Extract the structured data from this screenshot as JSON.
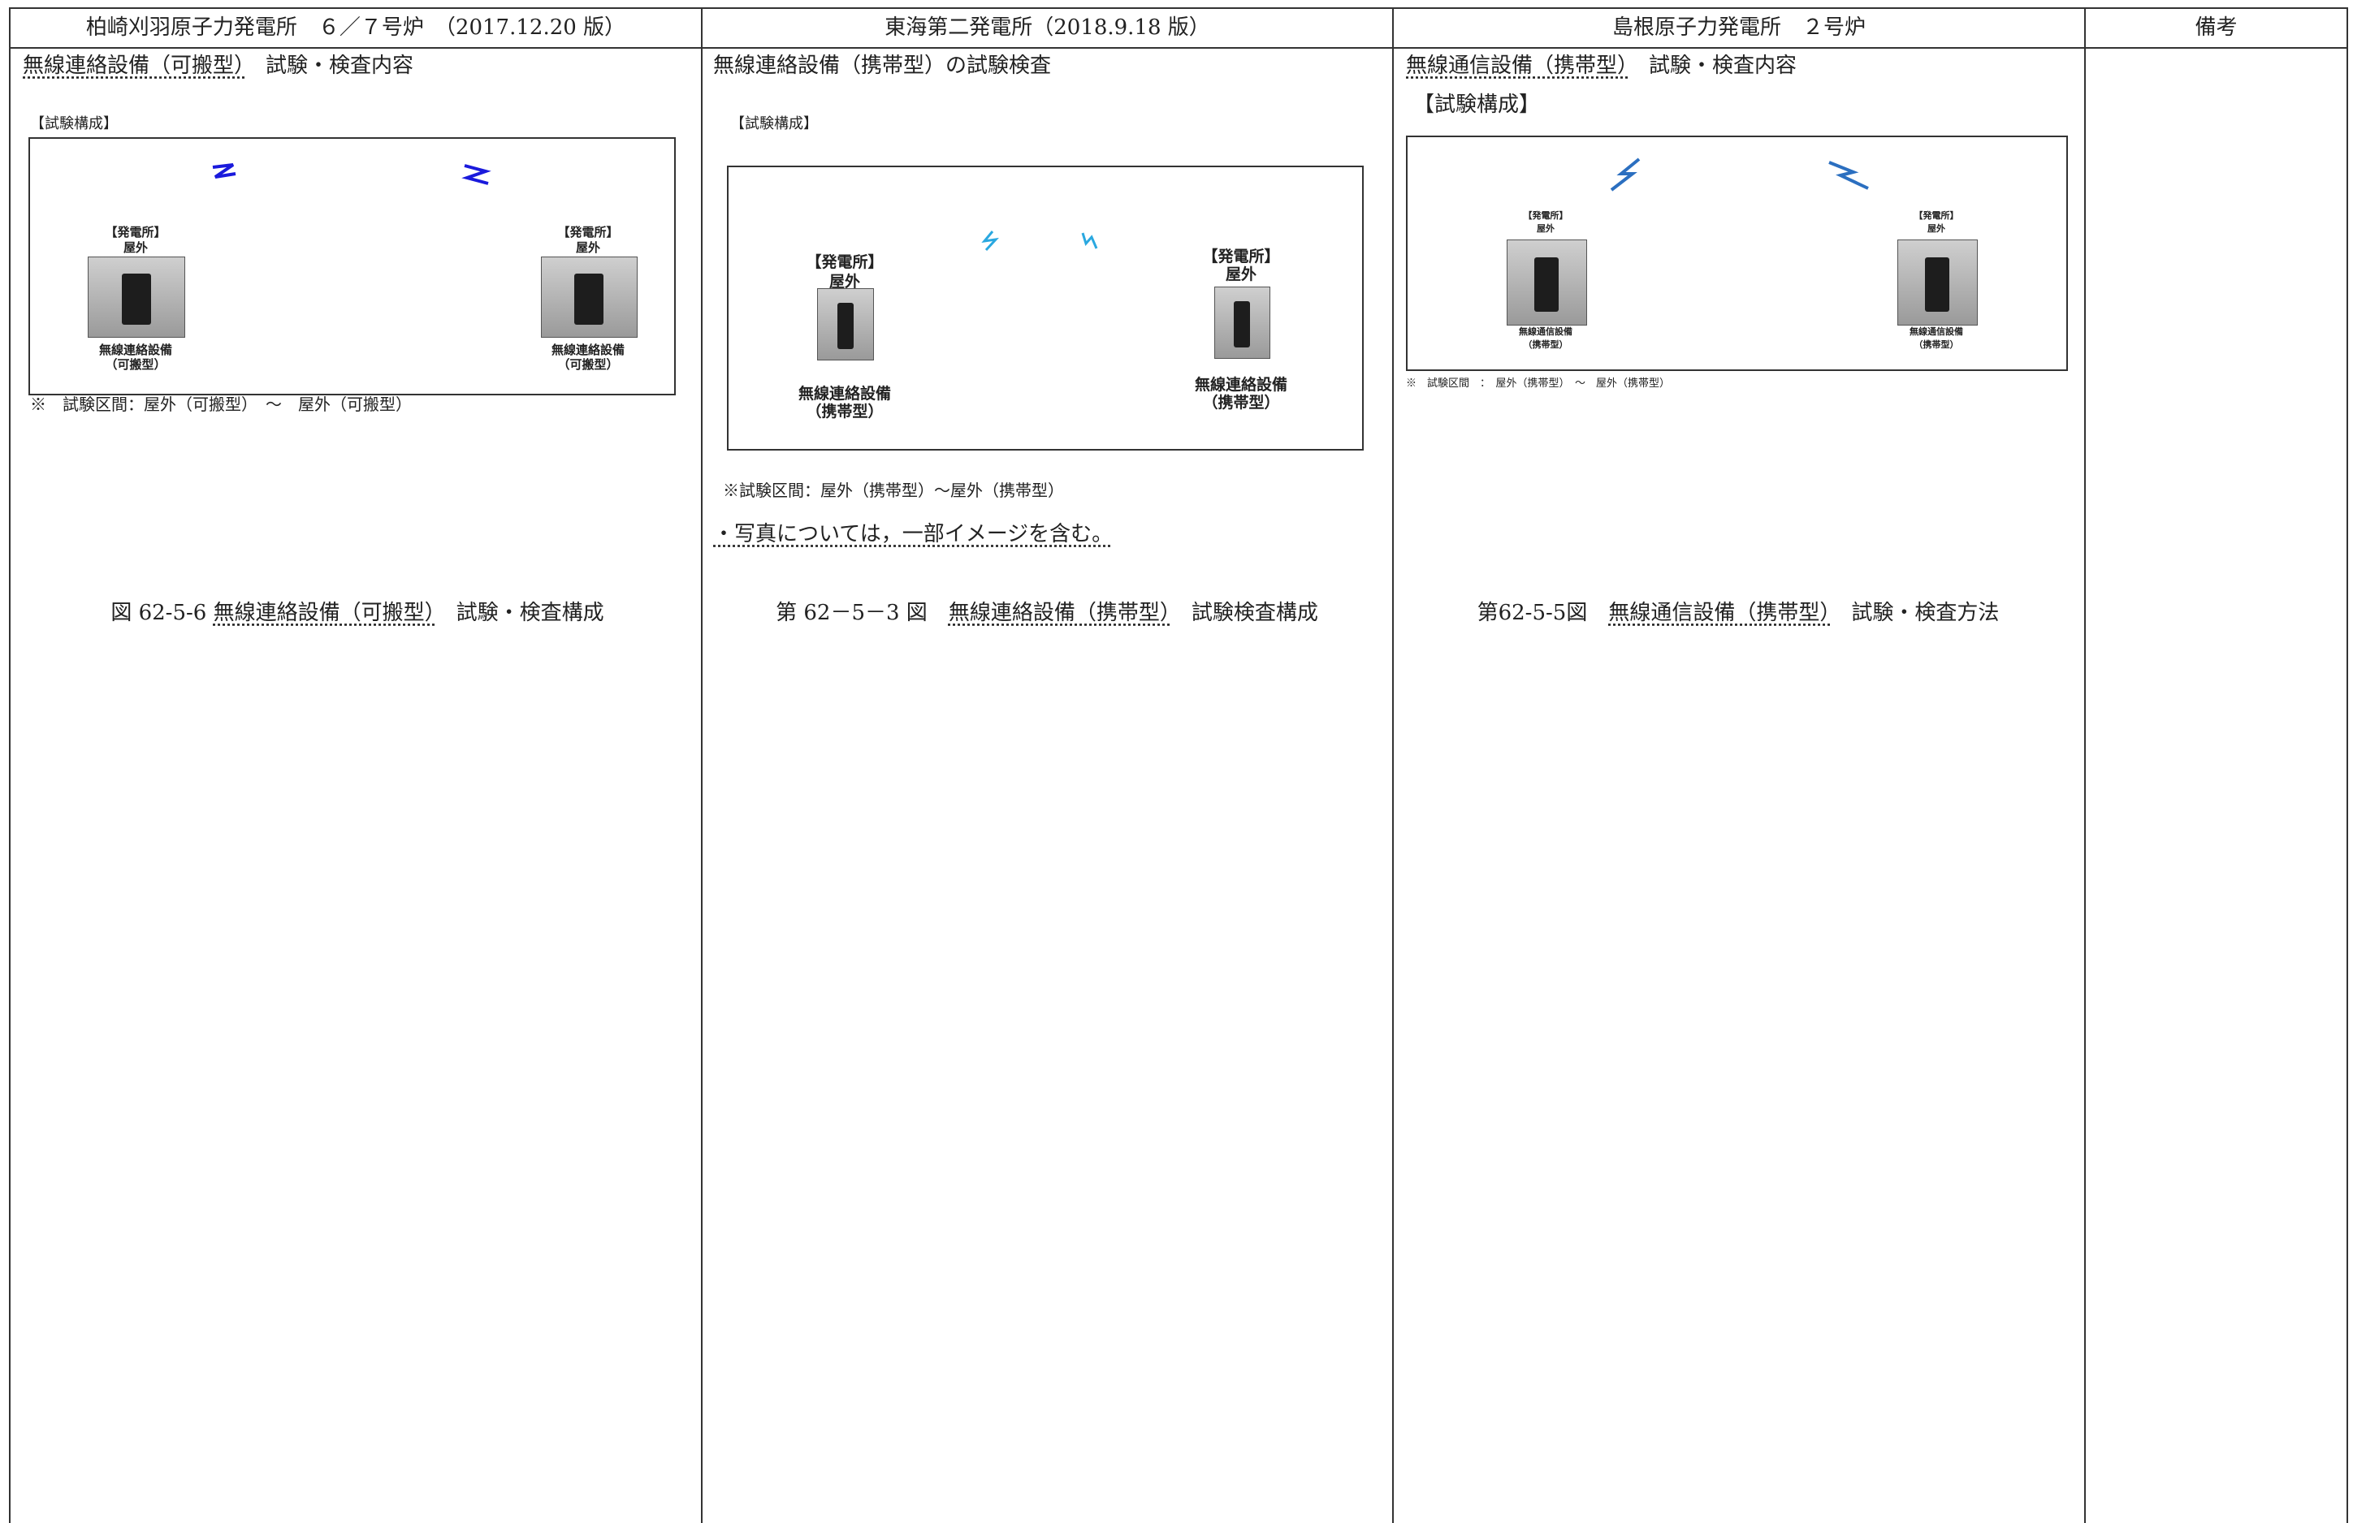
{
  "header": {
    "columns": [
      "柏崎刈羽原子力発電所　６／７号炉　（2017.12.20 版）",
      "東海第二発電所（2018.9.18 版）",
      "島根原子力発電所　２号炉",
      "備考"
    ]
  },
  "kashiwazaki": {
    "heading_underlined": "無線連絡設備（可搬型）",
    "heading_rest": "試験・検査内容",
    "config_label": "【試験構成】",
    "left_station": {
      "place": "【発電所】",
      "location": "屋外",
      "device": "無線連絡設備",
      "kind": "（可搬型）"
    },
    "right_station": {
      "place": "【発電所】",
      "location": "屋外",
      "device": "無線連絡設備",
      "kind": "（可搬型）"
    },
    "note": "※　試験区間：屋外（可搬型）　～　屋外（可搬型）",
    "caption": {
      "number": "図 62-5-6",
      "underlined": "無線連絡設備（可搬型）",
      "rest": "試験・検査構成"
    }
  },
  "tokai": {
    "heading": "無線連絡設備（携帯型）の試験検査",
    "config_label": "【試験構成】",
    "left_station": {
      "place": "【発電所】",
      "location": "屋外",
      "device": "無線連絡設備",
      "kind": "（携帯型）"
    },
    "right_station": {
      "place": "【発電所】",
      "location": "屋外",
      "device": "無線連絡設備",
      "kind": "（携帯型）"
    },
    "note": "※試験区間：屋外（携帯型）～屋外（携帯型）",
    "photo_note": "・写真については，一部イメージを含む。",
    "caption": {
      "number": "第 62－5－3 図",
      "underlined": "無線連絡設備（携帯型）",
      "rest": "試験検査構成"
    }
  },
  "shimane": {
    "heading_underlined": "無線通信設備（携帯型）",
    "heading_rest": "試験・検査内容",
    "config_label": "【試験構成】",
    "left_station": {
      "place": "【発電所】",
      "location": "屋外",
      "device": "無線通信設備",
      "kind": "（携帯型）"
    },
    "right_station": {
      "place": "【発電所】",
      "location": "屋外",
      "device": "無線通信設備",
      "kind": "（携帯型）"
    },
    "note": "※　試験区間　：　屋外（携帯型）　～　屋外（携帯型）",
    "caption": {
      "number": "第62-5-5図",
      "underlined": "無線通信設備（携帯型）",
      "rest": "試験・検査方法"
    }
  }
}
